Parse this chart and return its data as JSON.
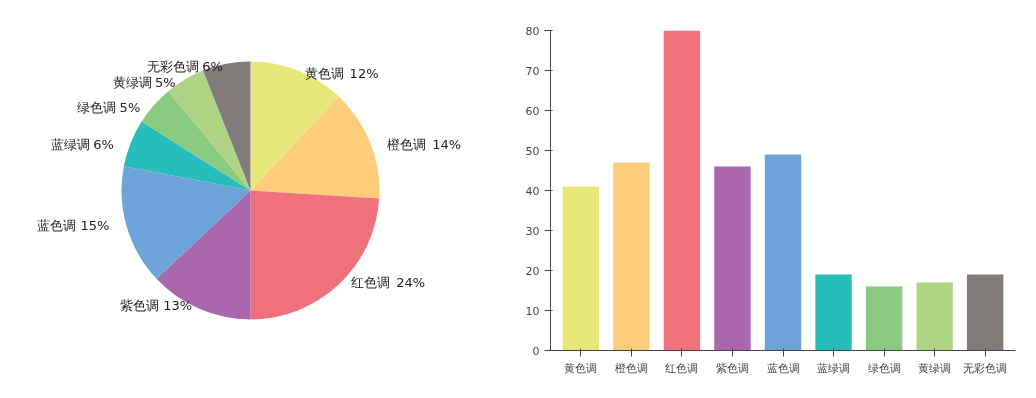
{
  "chart_data": [
    {
      "type": "pie",
      "categories": [
        "黄色调",
        "橙色调",
        "红色调",
        "紫色调",
        "蓝色调",
        "蓝绿调",
        "绿色调",
        "黄绿调",
        "无彩色调"
      ],
      "values": [
        12,
        14,
        24,
        13,
        15,
        6,
        5,
        5,
        6
      ],
      "colors": [
        "#e8e87a",
        "#fdcd7c",
        "#ef717b",
        "#ab67ad",
        "#6ca4d9",
        "#27bdbb",
        "#89cb80",
        "#b0d486",
        "#817b79"
      ],
      "value_labels": [
        "12%",
        "14%",
        "24%",
        "13%",
        "15%",
        "6%",
        "5%",
        "5%",
        "6%"
      ]
    },
    {
      "type": "bar",
      "categories": [
        "黄色调",
        "橙色调",
        "红色调",
        "紫色调",
        "蓝色调",
        "蓝绿调",
        "绿色调",
        "黄绿调",
        "无彩色调"
      ],
      "values": [
        41,
        47,
        80,
        46,
        49,
        19,
        16,
        17,
        19
      ],
      "colors": [
        "#e8e87a",
        "#fdcd7c",
        "#ef717b",
        "#ab67ad",
        "#6ca4d9",
        "#27bdbb",
        "#89cb80",
        "#b0d486",
        "#817b79"
      ],
      "ylim": [
        0,
        80
      ],
      "yticks": [
        0,
        10,
        20,
        30,
        40,
        50,
        60,
        70,
        80
      ],
      "grid": false
    }
  ]
}
